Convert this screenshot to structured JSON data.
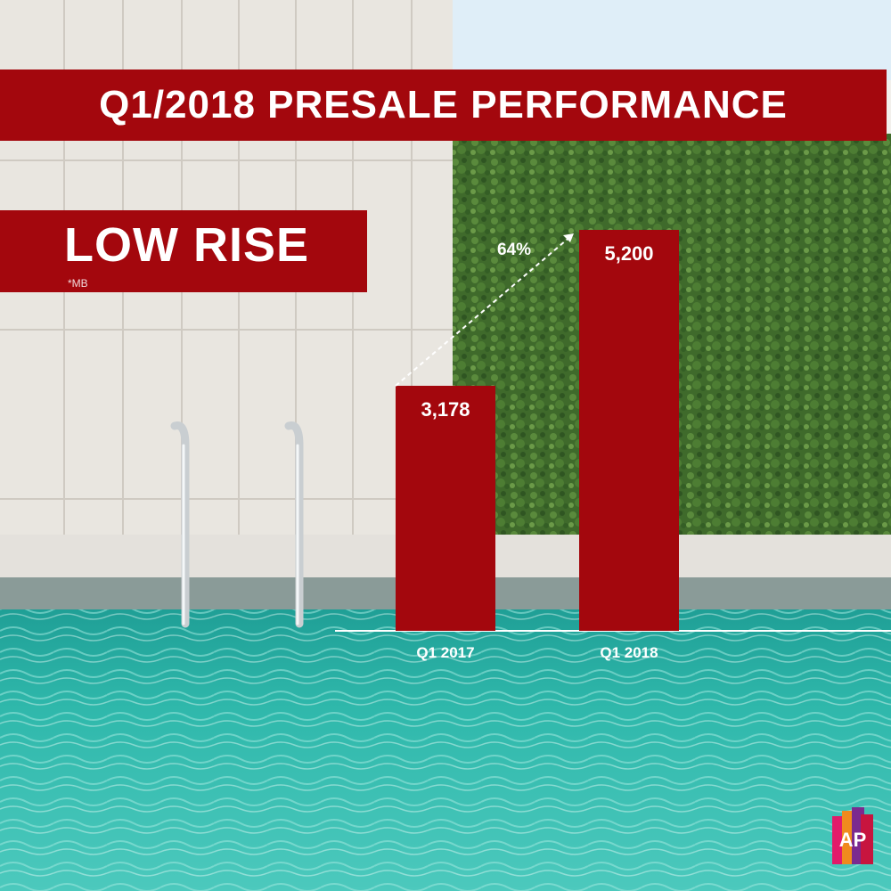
{
  "title": "Q1/2018 PRESALE PERFORMANCE",
  "segment_label": "LOW RISE",
  "unit_note": "*MB",
  "growth_label": "64%",
  "logo_text": "AP",
  "colors": {
    "brand_red": "#a3070d",
    "pool": "#2bb3a6",
    "hedge": "#3e6b2c",
    "wall": "#e9e6e0",
    "sky": "#dfeef8"
  },
  "chart_data": {
    "type": "bar",
    "categories": [
      "Q1 2017",
      "Q1 2018"
    ],
    "values": [
      3178,
      5200
    ],
    "value_labels": [
      "3,178",
      "5,200"
    ],
    "title": "Q1/2018 PRESALE PERFORMANCE",
    "subtitle": "LOW RISE",
    "ylabel": "*MB",
    "xlabel": "",
    "ylim": [
      0,
      5200
    ],
    "grid": false,
    "legend": "none"
  }
}
